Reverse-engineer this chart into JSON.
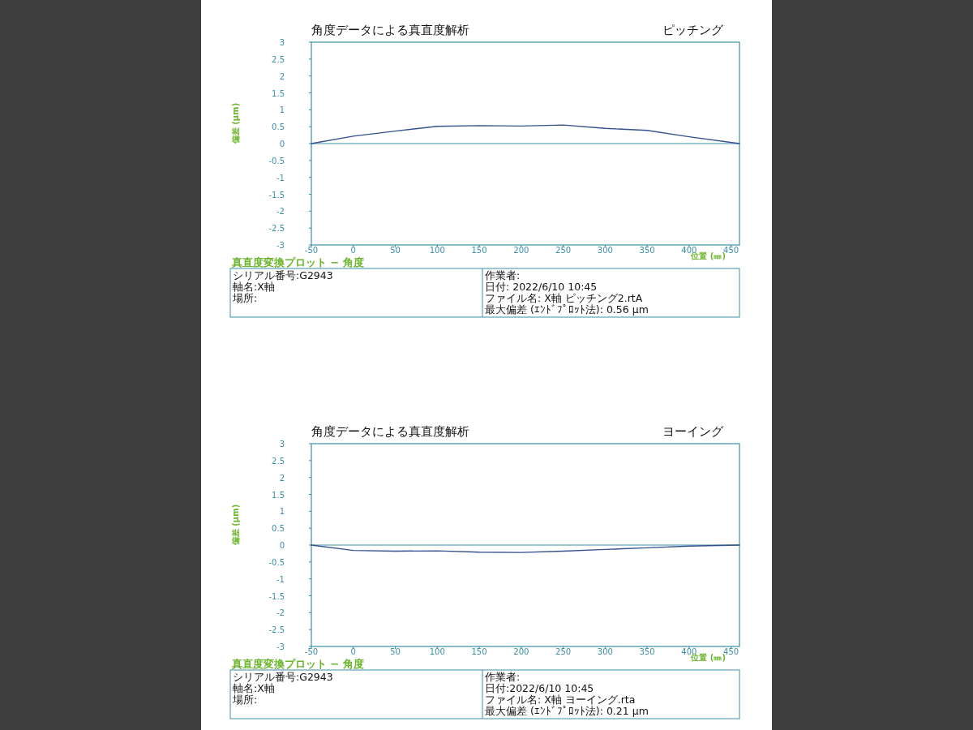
{
  "chart_data": [
    {
      "type": "line",
      "title": "角度データによる真直度解析",
      "subtitle": "ピッチング",
      "xlabel": "位置 (㎜)",
      "ylabel": "偏差 (μm)",
      "x": [
        -50,
        0,
        50,
        100,
        150,
        200,
        250,
        300,
        350,
        400,
        460
      ],
      "series": [
        {
          "color": "#34508f",
          "values": [
            0,
            0.22,
            0.37,
            0.51,
            0.53,
            0.52,
            0.55,
            0.45,
            0.39,
            0.2,
            0
          ]
        }
      ],
      "ref_lines": [
        {
          "axis": "y",
          "value": 0,
          "color": "#3a8fb0"
        }
      ],
      "xlim": [
        -50,
        460
      ],
      "xticks": [
        -50,
        0,
        50,
        100,
        150,
        200,
        250,
        300,
        350,
        400,
        450
      ],
      "ylim": [
        -3,
        3
      ],
      "yticks": [
        -3,
        -2.5,
        -2,
        -1.5,
        -1,
        -0.5,
        0,
        0.5,
        1,
        1.5,
        2,
        2.5,
        3
      ],
      "grid": false,
      "marker": "none",
      "line_style": "solid",
      "annotations": [
        "真直度変換プロット − 角度",
        "シリアル番号:G2943",
        "軸名:X軸",
        "場所:",
        "作業者:",
        "日付:  2022/6/10 10:45",
        "ファイル名: X軸  ピッチング2.rtA",
        "最大偏差 (ｴﾝﾄﾞﾌﾟﾛｯﾄ法):  0.56 μm"
      ]
    },
    {
      "type": "line",
      "title": "角度データによる真直度解析",
      "subtitle": "ヨーイング",
      "xlabel": "位置 (㎜)",
      "ylabel": "偏差 (μm)",
      "x": [
        -50,
        0,
        50,
        100,
        150,
        200,
        250,
        300,
        350,
        400,
        460
      ],
      "series": [
        {
          "color": "#34508f",
          "values": [
            0,
            -0.16,
            -0.18,
            -0.17,
            -0.21,
            -0.22,
            -0.18,
            -0.13,
            -0.08,
            -0.03,
            0
          ]
        }
      ],
      "ref_lines": [
        {
          "axis": "y",
          "value": 0,
          "color": "#3a8fb0"
        }
      ],
      "xlim": [
        -50,
        460
      ],
      "xticks": [
        -50,
        0,
        50,
        100,
        150,
        200,
        250,
        300,
        350,
        400,
        450
      ],
      "ylim": [
        -3,
        3
      ],
      "yticks": [
        -3,
        -2.5,
        -2,
        -1.5,
        -1,
        -0.5,
        0,
        0.5,
        1,
        1.5,
        2,
        2.5,
        3
      ],
      "grid": false,
      "marker": "none",
      "line_style": "solid",
      "annotations": [
        "真直度変換プロット − 角度",
        "シリアル番号:G2943",
        "軸名:X軸",
        "場所:",
        "作業者:",
        "日付:2022/6/10 10:45",
        "ファイル名: X軸  ヨーイング.rta",
        "最大偏差 (ｴﾝﾄﾞﾌﾟﾛｯﾄ法):  0.21 μm"
      ]
    }
  ]
}
